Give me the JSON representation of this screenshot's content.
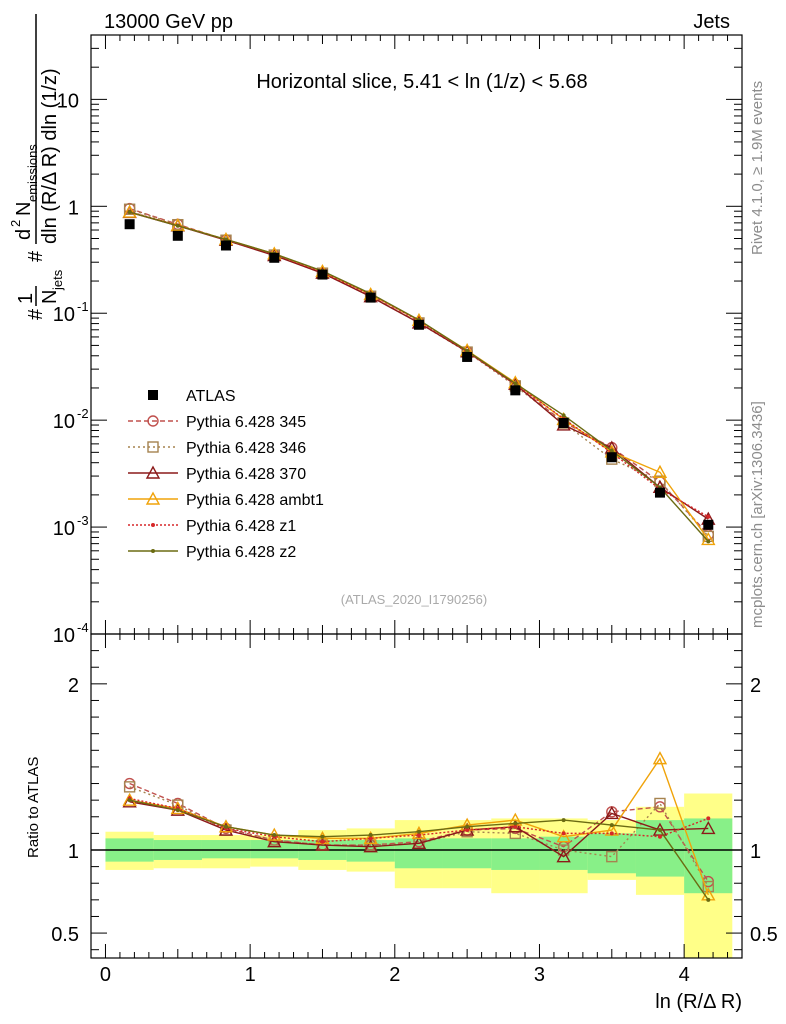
{
  "header": {
    "left": "13000 GeV pp",
    "right": "Jets"
  },
  "side": {
    "top": "Rivet 4.1.0, ≥ 1.9M events",
    "bottom": "mcplots.cern.ch [arXiv:1306.3436]"
  },
  "chart_data": {
    "type": "scatter",
    "title": "Horizontal slice, 5.41 < ln (1/z) < 5.68",
    "watermark": "(ATLAS_2020_I1790256)",
    "xlabel": "ln (R/Δ R)",
    "ylabel": "#1/N_jets # d^2 N_emissions / dln (R/Δ R) dln (1/z)",
    "ylabel_parts": {
      "p1": "1",
      "p2": "N",
      "p3": "jets",
      "p4": "d",
      "p5": "2",
      "p6": "N",
      "p7": "emissions",
      "p8": "dln (R/Δ R) dln (1/z)",
      "hash": "#"
    },
    "ratio_ylabel": "Ratio to ATLAS",
    "xlim": [
      -0.1,
      4.4
    ],
    "ylim": [
      0.0001,
      40
    ],
    "ratio_ylim": [
      0.35,
      2.3
    ],
    "x_ticks": [
      "0",
      "1",
      "2",
      "3",
      "4"
    ],
    "y_ticks": [
      {
        "base": "10",
        "exp": "-4",
        "v": 0.0001
      },
      {
        "base": "10",
        "exp": "-3",
        "v": 0.001
      },
      {
        "base": "10",
        "exp": "-2",
        "v": 0.01
      },
      {
        "base": "10",
        "exp": "-1",
        "v": 0.1
      },
      {
        "base": "1",
        "exp": "",
        "v": 1
      },
      {
        "base": "10",
        "exp": "",
        "v": 10
      }
    ],
    "ratio_ticks": [
      "0.5",
      "1",
      "2"
    ],
    "ratio_tick_values": [
      0.5,
      1,
      2
    ],
    "x": [
      0.167,
      0.5,
      0.833,
      1.167,
      1.5,
      1.833,
      2.167,
      2.5,
      2.833,
      3.167,
      3.5,
      3.833,
      4.167
    ],
    "bin_edges": [
      0,
      0.333,
      0.667,
      1.0,
      1.333,
      1.667,
      2.0,
      2.333,
      2.667,
      3.0,
      3.333,
      3.667,
      4.0,
      4.333
    ],
    "data": {
      "name": "ATLAS",
      "values": [
        0.68,
        0.53,
        0.43,
        0.33,
        0.23,
        0.14,
        0.078,
        0.039,
        0.019,
        0.0094,
        0.0045,
        0.0021,
        0.00105
      ]
    },
    "band_stat": [
      [
        0.93,
        1.07
      ],
      [
        0.94,
        1.06
      ],
      [
        0.95,
        1.06
      ],
      [
        0.95,
        1.06
      ],
      [
        0.94,
        1.06
      ],
      [
        0.93,
        1.06
      ],
      [
        0.89,
        1.07
      ],
      [
        0.89,
        1.07
      ],
      [
        0.88,
        1.07
      ],
      [
        0.88,
        1.08
      ],
      [
        0.86,
        1.1
      ],
      [
        0.84,
        1.18
      ],
      [
        0.74,
        1.19
      ]
    ],
    "band_total": [
      [
        0.88,
        1.11
      ],
      [
        0.89,
        1.09
      ],
      [
        0.89,
        1.09
      ],
      [
        0.9,
        1.09
      ],
      [
        0.88,
        1.12
      ],
      [
        0.87,
        1.13
      ],
      [
        0.77,
        1.18
      ],
      [
        0.77,
        1.18
      ],
      [
        0.74,
        1.19
      ],
      [
        0.74,
        1.19
      ],
      [
        0.82,
        1.18
      ],
      [
        0.73,
        1.26
      ],
      [
        0.35,
        1.34
      ]
    ],
    "series": [
      {
        "name": "Pythia 6.428 345",
        "color": "#c0504d",
        "dash": "5,3",
        "marker": "circle",
        "ratio": [
          1.4,
          1.28,
          1.13,
          1.06,
          1.03,
          1.03,
          1.05,
          1.12,
          1.13,
          1.02,
          1.23,
          1.26,
          0.81
        ]
      },
      {
        "name": "Pythia 6.428 346",
        "color": "#a6834f",
        "dash": "2,3",
        "marker": "square",
        "ratio": [
          1.38,
          1.27,
          1.12,
          1.06,
          1.03,
          1.03,
          1.04,
          1.11,
          1.1,
          1.0,
          0.96,
          1.28,
          0.78
        ]
      },
      {
        "name": "Pythia 6.428 370",
        "color": "#8b1a1a",
        "dash": "",
        "marker": "triangle",
        "ratio": [
          1.29,
          1.24,
          1.12,
          1.05,
          1.03,
          1.02,
          1.04,
          1.12,
          1.14,
          0.96,
          1.22,
          1.12,
          1.13
        ]
      },
      {
        "name": "Pythia 6.428 ambt1",
        "color": "#f0a30a",
        "dash": "",
        "marker": "triangle",
        "ratio": [
          1.3,
          1.25,
          1.14,
          1.09,
          1.07,
          1.07,
          1.1,
          1.15,
          1.18,
          1.08,
          1.12,
          1.55,
          0.73
        ]
      },
      {
        "name": "Pythia 6.428 z1",
        "color": "#d62728",
        "dash": "2,2",
        "marker": "dot",
        "ratio": [
          1.31,
          1.25,
          1.13,
          1.08,
          1.05,
          1.07,
          1.09,
          1.12,
          1.14,
          1.1,
          1.1,
          1.08,
          1.19
        ]
      },
      {
        "name": "Pythia 6.428 z2",
        "color": "#6b6b12",
        "dash": "",
        "marker": "dot",
        "ratio": [
          1.3,
          1.24,
          1.14,
          1.09,
          1.08,
          1.09,
          1.11,
          1.14,
          1.16,
          1.18,
          1.15,
          1.12,
          0.7
        ]
      }
    ]
  }
}
